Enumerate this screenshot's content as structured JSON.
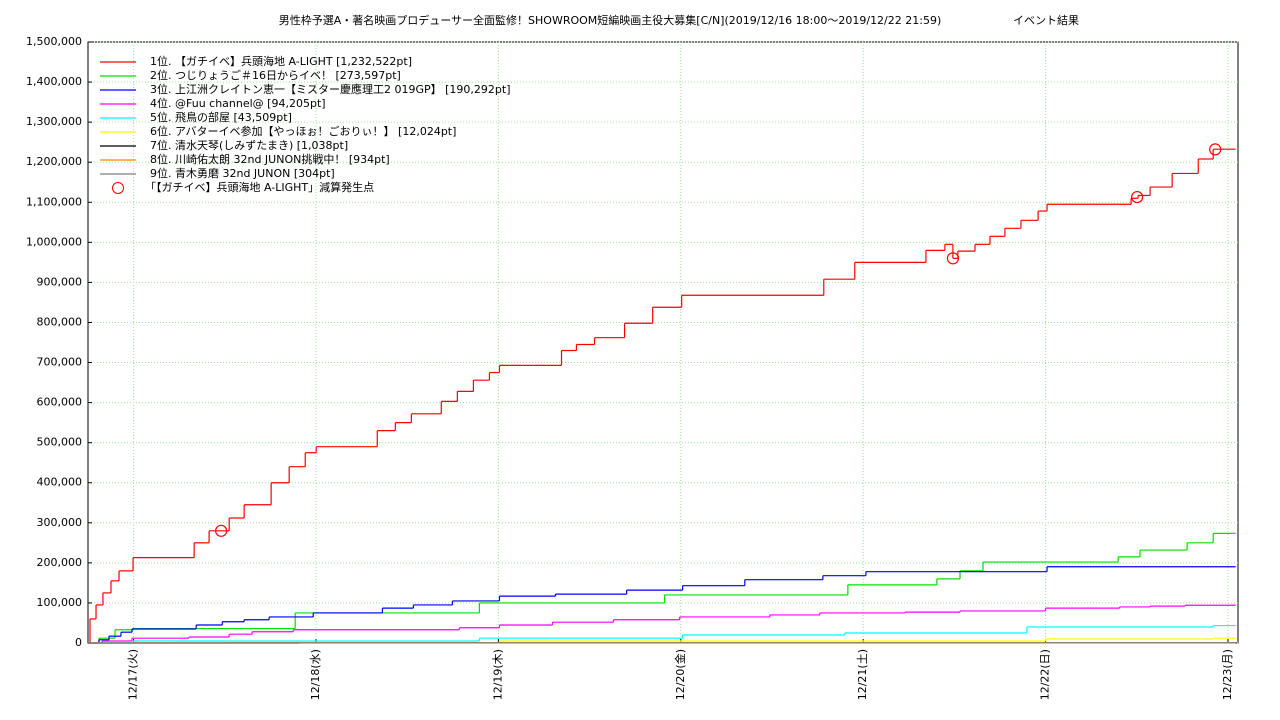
{
  "chart_data": {
    "type": "step-line",
    "title": "男性枠予選A・著名映画プロデューサー全面監修！SHOWROOM短編映画主役大募集[C/N](2019/12/16 18:00～2019/12/22 21:59)",
    "subtitle": "イベント結果",
    "xlim": [
      16.75,
      23.055
    ],
    "xticks": [
      {
        "value": 17,
        "label": "12/17(火)"
      },
      {
        "value": 18,
        "label": "12/18(水)"
      },
      {
        "value": 19,
        "label": "12/19(木)"
      },
      {
        "value": 20,
        "label": "12/20(金)"
      },
      {
        "value": 21,
        "label": "12/21(土)"
      },
      {
        "value": 22,
        "label": "12/22(日)"
      },
      {
        "value": 23,
        "label": "12/23(月)"
      }
    ],
    "ylim": [
      0,
      1500000
    ],
    "yticks": [
      0,
      {
        "value": 100000,
        "label": "100,000"
      },
      {
        "value": 200000,
        "label": "200,000"
      },
      {
        "value": 300000,
        "label": "300,000"
      },
      {
        "value": 400000,
        "label": "400,000"
      },
      {
        "value": 500000,
        "label": "500,000"
      },
      {
        "value": 600000,
        "label": "600,000"
      },
      {
        "value": 700000,
        "label": "700,000"
      },
      {
        "value": 800000,
        "label": "800,000"
      },
      {
        "value": 900000,
        "label": "900,000"
      },
      {
        "value": 1000000,
        "label": "1,000,000"
      },
      {
        "value": 1100000,
        "label": "1,100,000"
      },
      {
        "value": 1200000,
        "label": "1,200,000"
      },
      {
        "value": 1300000,
        "label": "1,300,000"
      },
      {
        "value": 1400000,
        "label": "1,400,000"
      },
      {
        "value": 1500000,
        "label": "1,500,000"
      }
    ],
    "grid": true,
    "legend": "top-left",
    "series": [
      {
        "name": "1位. 【ガチイベ】兵頭海地 A-LIGHT [1,232,522pt]",
        "color": "#ff0000",
        "x": [
          16.75,
          16.761,
          16.794,
          16.832,
          16.876,
          16.92,
          16.997,
          17.332,
          17.414,
          17.524,
          17.606,
          17.754,
          17.853,
          17.941,
          18.001,
          18.336,
          18.435,
          18.523,
          18.687,
          18.775,
          18.863,
          18.951,
          19.006,
          19.346,
          19.428,
          19.527,
          19.692,
          19.846,
          20.005,
          20.784,
          20.954,
          21.344,
          21.448,
          21.492,
          21.519,
          21.613,
          21.695,
          21.777,
          21.865,
          21.959,
          22.008,
          22.469,
          22.507,
          22.573,
          22.694,
          22.837,
          22.919,
          23.042
        ],
        "values": [
          0,
          60000,
          95000,
          125000,
          155000,
          180000,
          213000,
          250000,
          280000,
          312000,
          345000,
          400000,
          440000,
          475000,
          490000,
          530000,
          550000,
          572000,
          603000,
          628000,
          656000,
          675000,
          693000,
          730000,
          745000,
          762000,
          798000,
          838000,
          868000,
          908000,
          950000,
          980000,
          995000,
          960000,
          978000,
          995000,
          1015000,
          1035000,
          1055000,
          1078000,
          1095000,
          1110000,
          1117000,
          1138000,
          1172000,
          1208000,
          1232522,
          1232522
        ]
      },
      {
        "name": "2位. つじりょうご＃16日からイベ！ [273,597pt]",
        "color": "#00e000",
        "x": [
          16.75,
          16.81,
          16.898,
          16.997,
          17.886,
          18.896,
          19.911,
          20.916,
          21.404,
          21.531,
          21.657,
          22.398,
          22.518,
          22.776,
          22.919,
          23.042
        ],
        "values": [
          0,
          12000,
          33000,
          36000,
          75000,
          100000,
          120000,
          145000,
          160000,
          180000,
          202000,
          215000,
          232000,
          250000,
          273597,
          273597
        ]
      },
      {
        "name": "3位. 上江洲クレイトン恵一【ミスター慶應理工2 019GP】 [190,292pt]",
        "color": "#0000ff",
        "x": [
          16.75,
          16.81,
          16.865,
          16.931,
          16.991,
          17.343,
          17.486,
          17.606,
          17.743,
          17.985,
          18.364,
          18.534,
          18.748,
          19.006,
          19.313,
          19.703,
          20.01,
          20.351,
          20.779,
          21.015,
          22.008,
          23.042
        ],
        "values": [
          0,
          8000,
          17000,
          27000,
          35000,
          45000,
          53000,
          58000,
          65000,
          75000,
          87000,
          95000,
          105000,
          117000,
          122000,
          132000,
          143000,
          158000,
          168000,
          178000,
          190292,
          190292
        ]
      },
      {
        "name": "4位. @Fuu channel@ [94,205pt]",
        "color": "#ff00ff",
        "x": [
          16.75,
          16.827,
          16.991,
          17.304,
          17.524,
          17.65,
          17.875,
          18.786,
          19.006,
          19.297,
          19.631,
          19.994,
          20.488,
          20.762,
          21.229,
          21.531,
          22.0,
          22.406,
          22.573,
          22.765,
          23.042
        ],
        "values": [
          0,
          5000,
          12000,
          15000,
          22000,
          28000,
          33000,
          38000,
          45000,
          52000,
          58000,
          65000,
          70000,
          75000,
          77000,
          80000,
          87000,
          90000,
          92000,
          94205,
          94205
        ]
      },
      {
        "name": "5位. 飛鳥の部屋 [43,509pt]",
        "color": "#00ffff",
        "x": [
          16.75,
          16.997,
          18.896,
          20.01,
          20.899,
          21.898,
          22.919,
          23.042
        ],
        "values": [
          0,
          5000,
          12000,
          20000,
          25000,
          40000,
          43509,
          43509
        ]
      },
      {
        "name": "6位. アバターイベ参加【やっほぉ！ごおりぃ！】 [12,024pt]",
        "color": "#ffff00",
        "x": [
          16.75,
          19.006,
          22.0,
          22.919,
          23.042
        ],
        "values": [
          0,
          5000,
          10000,
          12024,
          12024
        ]
      },
      {
        "name": "7位. 清水天琴(しみずたまき) [1,038pt]",
        "color": "#000000",
        "x": [
          16.75,
          17.904,
          23.042
        ],
        "values": [
          0,
          1038,
          1038
        ]
      },
      {
        "name": "8位. 川崎佑太朗 32nd JUNON挑戦中！ [934pt]",
        "color": "#ff8000",
        "x": [
          16.75,
          17.5,
          23.042
        ],
        "values": [
          0,
          934,
          934
        ]
      },
      {
        "name": "9位. 青木勇磨  32nd JUNON [304pt]",
        "color": "#808080",
        "x": [
          16.75,
          17.2,
          23.042
        ],
        "values": [
          0,
          304,
          304
        ]
      },
      {
        "name": "「【ガチイベ】兵頭海地 A-LIGHT」減算発生点",
        "color": "#ff0000",
        "marker": "circle",
        "line": false,
        "x": [
          17.48,
          21.492,
          22.502,
          22.93
        ],
        "values": [
          280000,
          960000,
          1113000,
          1232000
        ]
      }
    ]
  }
}
